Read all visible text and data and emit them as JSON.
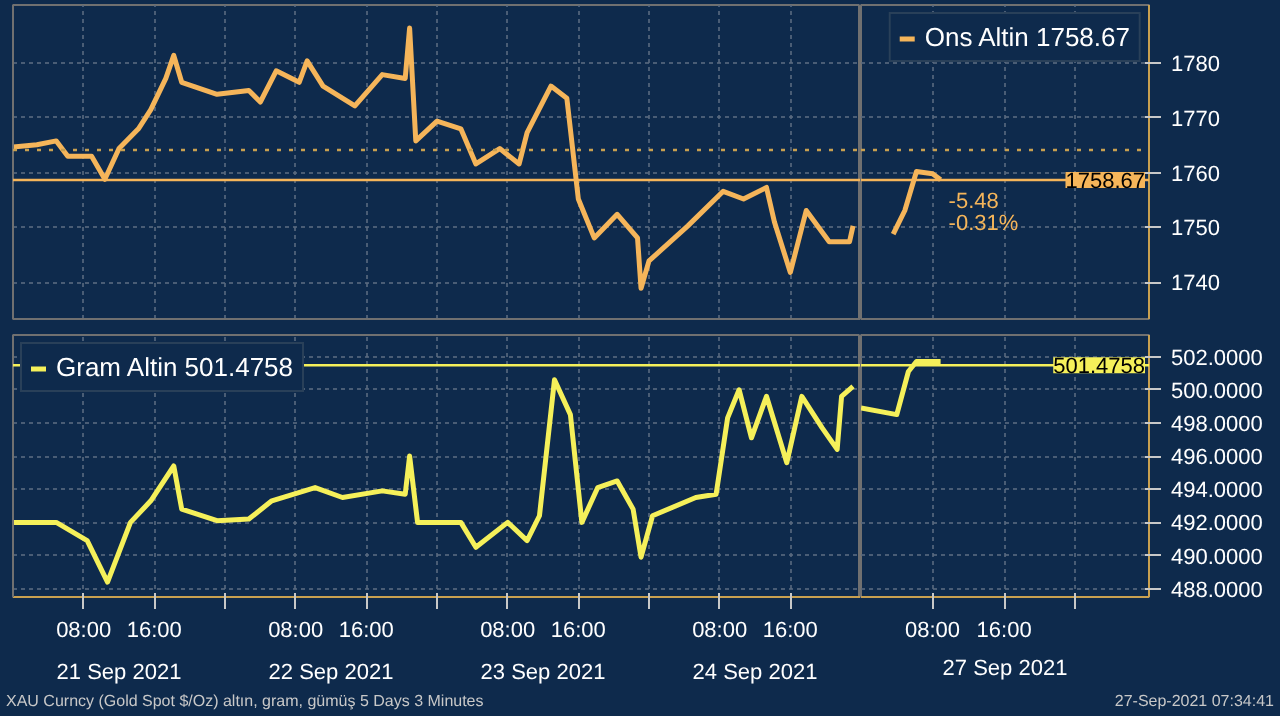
{
  "chart_data": [
    {
      "type": "line",
      "x": [
        "2021-09-21T00:00",
        "2021-09-21T02:42",
        "2021-09-21T04:54",
        "2021-09-21T06:12",
        "2021-09-21T08:54",
        "2021-09-21T10:24",
        "2021-09-21T12:00",
        "2021-09-21T14:12",
        "2021-09-21T15:36",
        "2021-09-21T17:18",
        "2021-09-21T18:12",
        "2021-09-21T19:06",
        "2021-09-21T23:06",
        "2021-09-22T02:42",
        "2021-09-22T04:00",
        "2021-09-22T05:48",
        "2021-09-22T08:24",
        "2021-09-22T09:18",
        "2021-09-22T11:06",
        "2021-09-22T14:42",
        "2021-09-22T17:48",
        "2021-09-22T20:24",
        "2021-09-22T20:54",
        "2021-09-22T21:36",
        "2021-09-23T00:00",
        "2021-09-23T02:42",
        "2021-09-23T04:24",
        "2021-09-23T07:06",
        "2021-09-23T09:18",
        "2021-09-23T10:12",
        "2021-09-23T12:54",
        "2021-09-23T14:42",
        "2021-09-23T16:00",
        "2021-09-23T17:48",
        "2021-09-23T20:24",
        "2021-09-23T22:42",
        "2021-09-23T23:06",
        "2021-09-24T00:00",
        "2021-09-24T04:24",
        "2021-09-24T08:24",
        "2021-09-24T10:42",
        "2021-09-24T13:18",
        "2021-09-24T14:12",
        "2021-09-24T16:00",
        "2021-09-24T17:48",
        "2021-09-24T20:24",
        "2021-09-24T22:42",
        "2021-09-24T23:06"
      ],
      "series": [
        {
          "color": "#f5b55a",
          "values": [
            1764.7,
            1765.1,
            1765.8,
            1763.0,
            1763.0,
            1758.8,
            1764.4,
            1768.0,
            1771.5,
            1777.2,
            1781.4,
            1776.5,
            1774.3,
            1775.0,
            1772.9,
            1778.6,
            1776.5,
            1780.4,
            1775.8,
            1772.2,
            1777.9,
            1777.2,
            1786.4,
            1765.8,
            1769.4,
            1768.0,
            1761.6,
            1764.4,
            1761.6,
            1767.3,
            1775.8,
            1773.6,
            1755.2,
            1748.1,
            1752.4,
            1748.1,
            1738.9,
            1743.9,
            1750.3,
            1756.6,
            1755.2,
            1757.3,
            1751.0,
            1741.8,
            1753.1,
            1747.4,
            1747.4,
            1750.3
          ]
        }
      ],
      "xlim": [
        "2021-09-21T00:00",
        "2021-09-25T00:00"
      ],
      "ylim": [
        1733.3,
        1790.6
      ],
      "xticks": [
        {
          "value": "2021-09-21T08:00",
          "label": null
        },
        {
          "value": "2021-09-21T16:00",
          "label": null
        },
        {
          "value": "2021-09-22T00:00",
          "label": null
        },
        {
          "value": "2021-09-22T08:00",
          "label": null
        },
        {
          "value": "2021-09-22T16:00",
          "label": null
        },
        {
          "value": "2021-09-23T00:00",
          "label": null
        },
        {
          "value": "2021-09-23T08:00",
          "label": null
        },
        {
          "value": "2021-09-23T16:00",
          "label": null
        },
        {
          "value": "2021-09-24T00:00",
          "label": null
        },
        {
          "value": "2021-09-24T08:00",
          "label": null
        },
        {
          "value": "2021-09-24T16:00",
          "label": null
        }
      ],
      "yticks": [
        1740,
        1750,
        1760,
        1770,
        1780
      ],
      "tick_labels": false,
      "grid": true,
      "ref_lines": [
        {
          "axis": "y",
          "value": 1764.15,
          "color": "#c8a050",
          "line_style": "dotted"
        },
        {
          "axis": "y",
          "value": 1758.67,
          "color": "#f5b55a",
          "line_style": "solid"
        }
      ]
    },
    {
      "type": "line",
      "x": [
        "2021-09-27T03:36",
        "2021-09-27T04:54",
        "2021-09-27T06:12",
        "2021-09-27T08:00",
        "2021-09-27T08:54"
      ],
      "series": [
        {
          "name": "Ons Altin 1758.67",
          "color": "#f5b55a",
          "values": [
            1748.8,
            1753.1,
            1760.2,
            1759.8,
            1758.7
          ]
        }
      ],
      "xlim": [
        "2021-09-27T00:00",
        "2021-09-28T08:12"
      ],
      "ylim": [
        1733.3,
        1790.6
      ],
      "xticks": [
        {
          "value": "2021-09-27T08:00",
          "label": null
        },
        {
          "value": "2021-09-27T16:00",
          "label": null
        },
        {
          "value": "2021-09-28T00:00",
          "label": null
        }
      ],
      "yticks": [
        1740,
        1750,
        1760,
        1770,
        1780
      ],
      "tick_labels": "y",
      "grid": true,
      "legend": "top right",
      "ref_lines": [
        {
          "axis": "y",
          "value": 1764.15,
          "color": "#c8a050",
          "line_style": "dotted"
        },
        {
          "axis": "y",
          "value": 1758.67,
          "label": "1758.67",
          "color": "#f5b55a",
          "line_style": "solid"
        }
      ],
      "annotations": [
        "-5.48",
        "-0.31%"
      ]
    },
    {
      "type": "line",
      "x": [
        "2021-09-21T00:00",
        "2021-09-21T04:54",
        "2021-09-21T08:24",
        "2021-09-21T10:42",
        "2021-09-21T13:18",
        "2021-09-21T15:36",
        "2021-09-21T18:12",
        "2021-09-21T19:06",
        "2021-09-21T23:06",
        "2021-09-22T02:42",
        "2021-09-22T05:18",
        "2021-09-22T10:12",
        "2021-09-22T13:18",
        "2021-09-22T17:48",
        "2021-09-22T20:24",
        "2021-09-22T20:54",
        "2021-09-22T21:48",
        "2021-09-23T02:42",
        "2021-09-23T04:24",
        "2021-09-23T08:00",
        "2021-09-23T10:12",
        "2021-09-23T11:36",
        "2021-09-23T13:18",
        "2021-09-23T15:06",
        "2021-09-23T16:24",
        "2021-09-23T18:12",
        "2021-09-23T20:24",
        "2021-09-23T22:12",
        "2021-09-23T23:06",
        "2021-09-24T00:24",
        "2021-09-24T05:18",
        "2021-09-24T07:36",
        "2021-09-24T08:54",
        "2021-09-24T10:12",
        "2021-09-24T11:36",
        "2021-09-24T13:18",
        "2021-09-24T15:36",
        "2021-09-24T17:18",
        "2021-09-24T19:36",
        "2021-09-24T21:18",
        "2021-09-24T21:48",
        "2021-09-24T23:06"
      ],
      "series": [
        {
          "name": "Gram Altin 501.4758",
          "color": "#f5f05a",
          "values": [
            492.0,
            492.0,
            490.9,
            488.4,
            492.0,
            493.3,
            495.4,
            492.8,
            492.1,
            492.2,
            493.3,
            494.1,
            493.5,
            493.9,
            493.7,
            496.0,
            492.0,
            492.0,
            490.5,
            492.0,
            490.9,
            492.4,
            500.6,
            498.5,
            492.0,
            494.1,
            494.5,
            492.8,
            489.9,
            492.4,
            493.5,
            493.7,
            498.3,
            500.0,
            497.1,
            499.6,
            495.6,
            499.6,
            497.7,
            496.4,
            499.6,
            500.2
          ]
        }
      ],
      "xlim": [
        "2021-09-21T00:00",
        "2021-09-25T00:00"
      ],
      "ylim": [
        487.5,
        503.3
      ],
      "xticks": [
        {
          "value": "2021-09-21T08:00",
          "label": "08:00"
        },
        {
          "value": "2021-09-21T16:00",
          "label": "16:00"
        },
        {
          "value": "2021-09-22T00:00",
          "label": null
        },
        {
          "value": "2021-09-22T08:00",
          "label": "08:00"
        },
        {
          "value": "2021-09-22T16:00",
          "label": "16:00"
        },
        {
          "value": "2021-09-23T00:00",
          "label": null
        },
        {
          "value": "2021-09-23T08:00",
          "label": "08:00"
        },
        {
          "value": "2021-09-23T16:00",
          "label": "16:00"
        },
        {
          "value": "2021-09-24T00:00",
          "label": null
        },
        {
          "value": "2021-09-24T08:00",
          "label": "08:00"
        },
        {
          "value": "2021-09-24T16:00",
          "label": "16:00"
        }
      ],
      "x2lim": [
        "2021-09-21T00:00",
        "2021-09-25T00:00"
      ],
      "x2ticks": [
        {
          "value": "2021-09-21T12:00",
          "label": "21 Sep 2021"
        },
        {
          "value": "2021-09-22T12:00",
          "label": "22 Sep 2021"
        },
        {
          "value": "2021-09-23T12:00",
          "label": "23 Sep 2021"
        },
        {
          "value": "2021-09-24T12:00",
          "label": "24 Sep 2021"
        }
      ],
      "yticks": [
        488,
        490,
        492,
        494,
        496,
        498,
        500,
        502
      ],
      "tick_labels": "x",
      "grid": true,
      "legend": "top left",
      "ref_lines": [
        {
          "axis": "y",
          "value": 501.4758,
          "color": "#f5f05a",
          "line_style": "solid"
        }
      ],
      "annotations": [
        "XAU Curncy (Gold Spot  $/Oz) altın, gram, gümüş 5 Days 3 Minutes"
      ]
    },
    {
      "type": "line",
      "x": [
        "2021-09-27T00:00",
        "2021-09-27T04:00",
        "2021-09-27T05:18",
        "2021-09-27T06:12",
        "2021-09-27T08:54"
      ],
      "series": [
        {
          "color": "#f5f05a",
          "values": [
            498.9,
            498.5,
            501.1,
            501.7,
            501.7
          ]
        }
      ],
      "xlim": [
        "2021-09-27T00:00",
        "2021-09-28T08:12"
      ],
      "ylim": [
        487.5,
        503.3
      ],
      "xticks": [
        {
          "value": "2021-09-27T08:00",
          "label": "08:00"
        },
        {
          "value": "2021-09-27T16:00",
          "label": "16:00"
        },
        {
          "value": "2021-09-28T00:00",
          "label": null
        }
      ],
      "xlabel": "27 Sep 2021",
      "yticks": [
        {
          "value": 488,
          "label": "488.0000"
        },
        {
          "value": 490,
          "label": "490.0000"
        },
        {
          "value": 492,
          "label": "492.0000"
        },
        {
          "value": 494,
          "label": "494.0000"
        },
        {
          "value": 496,
          "label": "496.0000"
        },
        {
          "value": 498,
          "label": "498.0000"
        },
        {
          "value": 500,
          "label": "500.0000"
        },
        {
          "value": 502,
          "label": "502.0000"
        }
      ],
      "grid": true,
      "ref_lines": [
        {
          "axis": "y",
          "value": 501.4758,
          "label": "501.4758",
          "color": "#f5f05a",
          "line_style": "solid"
        }
      ],
      "annotations": [
        "27-Sep-2021 07:34:41"
      ]
    }
  ]
}
